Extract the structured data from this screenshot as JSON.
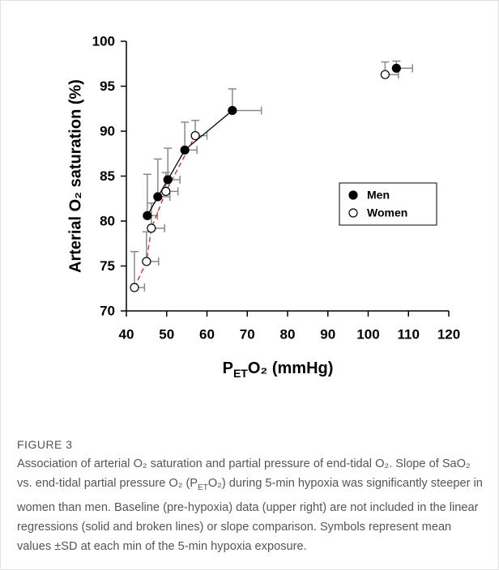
{
  "chart_data": {
    "type": "scatter",
    "ylabel": "Arterial O₂ saturation (%)",
    "xlabel": [
      "P",
      "ET",
      "O₂ (mmHg)"
    ],
    "xlim": [
      40,
      120
    ],
    "xticks": [
      40,
      50,
      60,
      70,
      80,
      90,
      100,
      110,
      120
    ],
    "ylim": [
      70,
      100
    ],
    "yticks": [
      70,
      75,
      80,
      85,
      90,
      95,
      100
    ],
    "legend": "right",
    "error_color": "#8a8a8a",
    "series": [
      {
        "name": "Men",
        "color": "#000000",
        "marker_fill": "#000000",
        "line_color": "#000000",
        "line_style": "solid",
        "x": [
          45.2,
          47.8,
          50.3,
          54.5,
          66.3
        ],
        "values": [
          80.6,
          82.7,
          84.6,
          87.9,
          92.3
        ],
        "x_err": [
          2.5,
          3,
          3,
          3,
          7.2
        ],
        "y_err": [
          4.6,
          4.2,
          3.5,
          3.1,
          2.4
        ],
        "baseline": {
          "x": 107,
          "value": 97,
          "x_err": 4,
          "y_err": 0.8
        }
      },
      {
        "name": "Women",
        "color": "#000000",
        "marker_fill": "#ffffff",
        "line_color": "#e02020",
        "line_style": "dashed",
        "x": [
          42,
          45,
          46.2,
          49.8,
          57.1
        ],
        "values": [
          72.6,
          75.5,
          79.2,
          83.3,
          89.5
        ],
        "x_err": [
          2.5,
          3,
          3.3,
          3,
          2.9
        ],
        "y_err": [
          4,
          3.3,
          2.8,
          2.1,
          1.7
        ],
        "baseline": {
          "x": 104.2,
          "value": 96.3,
          "x_err": 3.3,
          "y_err": 1.4
        }
      }
    ]
  },
  "figure": {
    "label": "FIGURE 3",
    "caption": [
      "Association of arterial O₂ saturation and partial pressure of end-tidal O₂. Slope of SaO₂ vs. end-tidal partial pressure O₂ (P",
      "ET",
      "O₂) during 5-min hypoxia was significantly steeper in women than men. Baseline (pre-hypoxia) data (upper right) are not included in the linear regressions (solid and broken lines) or slope comparison. Symbols represent mean values ±SD at each min of the 5-min hypoxia exposure."
    ]
  }
}
